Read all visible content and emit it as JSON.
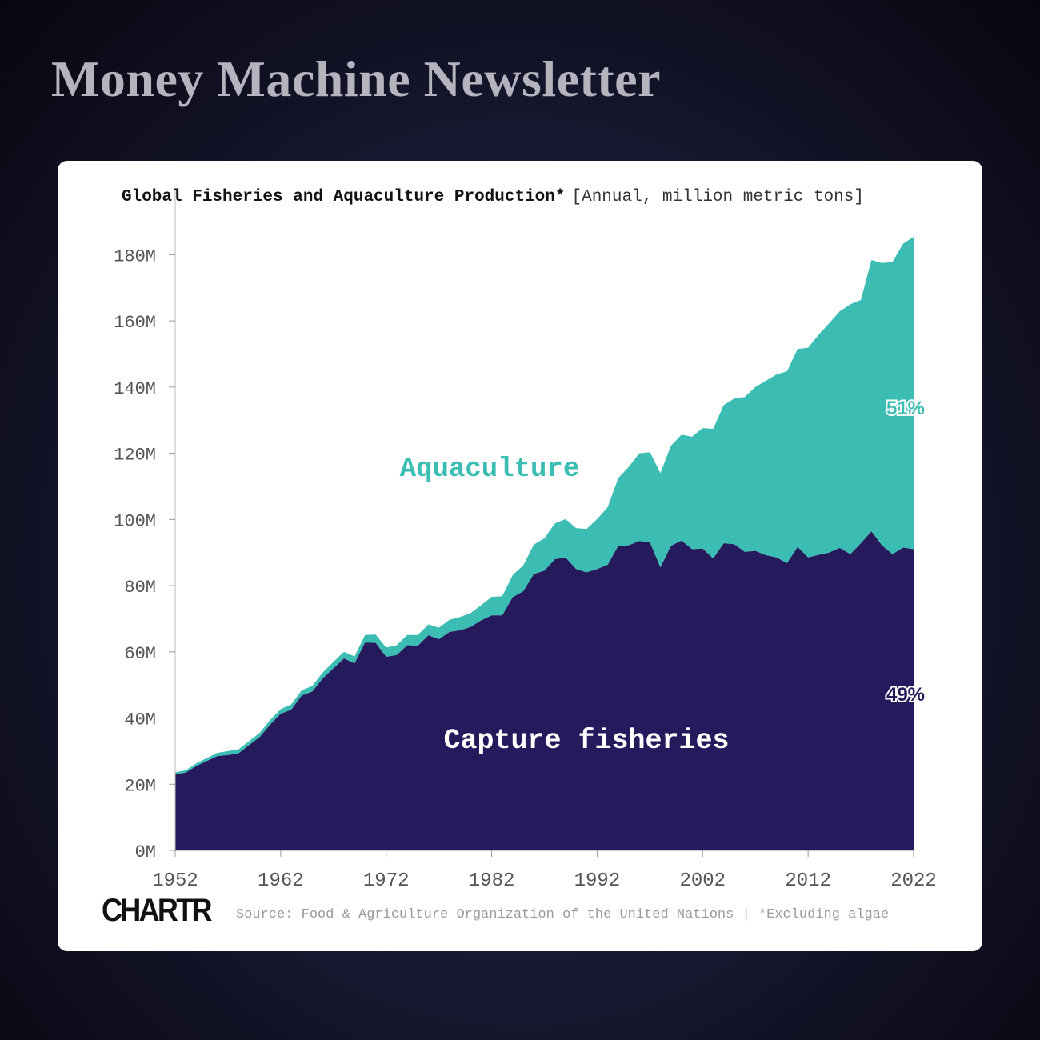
{
  "header": {
    "title": "Money Machine Newsletter"
  },
  "chart_title": "Global Fisheries and Aquaculture Production*",
  "chart_units": "[Annual, million metric tons]",
  "footer": {
    "brand": "CHARTR",
    "source": "Source: Food & Agriculture Organization of the United Nations | *Excluding algae"
  },
  "colors": {
    "capture": "#241a5c",
    "aquaculture": "#3bbdb3",
    "background": "#14142c"
  },
  "chart_data": {
    "type": "area",
    "stacked": true,
    "title": "Global Fisheries and Aquaculture Production*",
    "subtitle": "[Annual, million metric tons]",
    "xlabel": "",
    "ylabel": "",
    "xlim": [
      1952,
      2022
    ],
    "ylim": [
      0,
      190
    ],
    "x_ticks": [
      1952,
      1962,
      1972,
      1982,
      1992,
      2002,
      2012,
      2022
    ],
    "y_ticks": [
      0,
      20,
      40,
      60,
      80,
      100,
      120,
      140,
      160,
      180
    ],
    "y_tick_labels": [
      "0M",
      "20M",
      "40M",
      "60M",
      "80M",
      "100M",
      "120M",
      "140M",
      "160M",
      "180M"
    ],
    "x_tick_labels": [
      "1952",
      "1962",
      "1972",
      "1982",
      "1992",
      "2002",
      "2012",
      "2022"
    ],
    "grid": false,
    "x": [
      1952,
      1953,
      1954,
      1955,
      1956,
      1957,
      1958,
      1959,
      1960,
      1961,
      1962,
      1963,
      1964,
      1965,
      1966,
      1967,
      1968,
      1969,
      1970,
      1971,
      1972,
      1973,
      1974,
      1975,
      1976,
      1977,
      1978,
      1979,
      1980,
      1981,
      1982,
      1983,
      1984,
      1985,
      1986,
      1987,
      1988,
      1989,
      1990,
      1991,
      1992,
      1993,
      1994,
      1995,
      1996,
      1997,
      1998,
      1999,
      2000,
      2001,
      2002,
      2003,
      2004,
      2005,
      2006,
      2007,
      2008,
      2009,
      2010,
      2011,
      2012,
      2013,
      2014,
      2015,
      2016,
      2017,
      2018,
      2019,
      2020,
      2021,
      2022
    ],
    "series": [
      {
        "name": "Capture fisheries",
        "label_text": "Capture fisheries",
        "share_label": "49%",
        "values": [
          23,
          23.5,
          25.5,
          27,
          28.5,
          28.8,
          29.3,
          31.8,
          34.2,
          38,
          41.3,
          42.5,
          46.8,
          48,
          52,
          55,
          58,
          56.5,
          62.8,
          62.7,
          58.5,
          59,
          62,
          61.8,
          65,
          63.8,
          66,
          66.5,
          67.5,
          69.5,
          71,
          71,
          76.5,
          78.3,
          83.5,
          84.5,
          88,
          88.5,
          85,
          84,
          85,
          86.3,
          92,
          92.2,
          93.5,
          93,
          85.5,
          92,
          93.6,
          91,
          91.2,
          88.2,
          92.8,
          92.5,
          90.2,
          90.5,
          89.2,
          88.5,
          86.8,
          91.7,
          88.5,
          89.3,
          90,
          91.4,
          89.5,
          92.8,
          96.4,
          92.2,
          89.5,
          91.5,
          91
        ]
      },
      {
        "name": "Aquaculture",
        "label_text": "Aquaculture",
        "share_label": "51%",
        "values": [
          0.6,
          0.7,
          0.8,
          0.9,
          1,
          1.2,
          1.2,
          1.2,
          1.3,
          1.4,
          1.4,
          1.6,
          1.6,
          1.7,
          1.8,
          2,
          2,
          2.1,
          2.3,
          2.5,
          2.8,
          3,
          3.1,
          3.3,
          3.3,
          3.5,
          3.7,
          4,
          4.2,
          4.6,
          5.6,
          5.8,
          6.7,
          7.8,
          8.9,
          9.8,
          10.8,
          11.6,
          12.4,
          13.1,
          15.1,
          17.4,
          20.5,
          23.7,
          26.5,
          27.3,
          28.5,
          30.3,
          32,
          34,
          36.4,
          39.2,
          41.8,
          44,
          46.8,
          49.5,
          52.7,
          55.3,
          58,
          59.8,
          63.4,
          66.5,
          69.3,
          71.5,
          75.5,
          73.5,
          82,
          85.3,
          88.3,
          91.8,
          94.4
        ]
      }
    ]
  }
}
